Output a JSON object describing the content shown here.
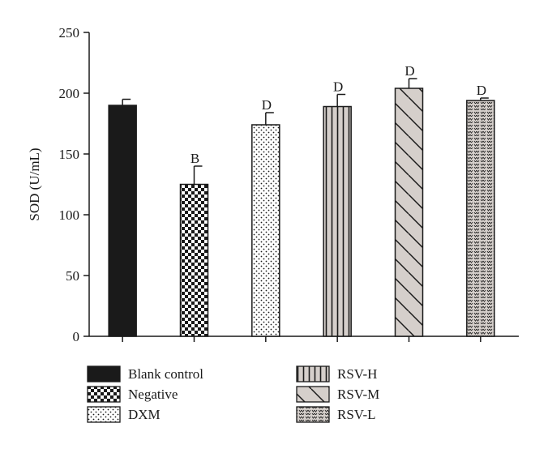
{
  "chart_data": {
    "type": "bar",
    "title": "",
    "xlabel": "",
    "ylabel": "SOD (U/mL)",
    "ylim": [
      0,
      250
    ],
    "yticks": [
      0,
      50,
      100,
      150,
      200,
      250
    ],
    "categories": [
      "Blank control",
      "Negative",
      "DXM",
      "RSV-H",
      "RSV-M",
      "RSV-L"
    ],
    "values": [
      190,
      125,
      174,
      189,
      204,
      194
    ],
    "errors": [
      5,
      15,
      10,
      10,
      8,
      2
    ],
    "significance": [
      "",
      "B",
      "D",
      "D",
      "D",
      "D"
    ],
    "patterns": [
      "solid",
      "checker",
      "dots",
      "vertical-lines",
      "diagonal-lines",
      "hearts"
    ],
    "colors": {
      "bar_fill": "#d5cfcb",
      "dark": "#1a1a1a",
      "axis": "#1a1a1a"
    },
    "grid": false,
    "legend_position": "bottom"
  }
}
